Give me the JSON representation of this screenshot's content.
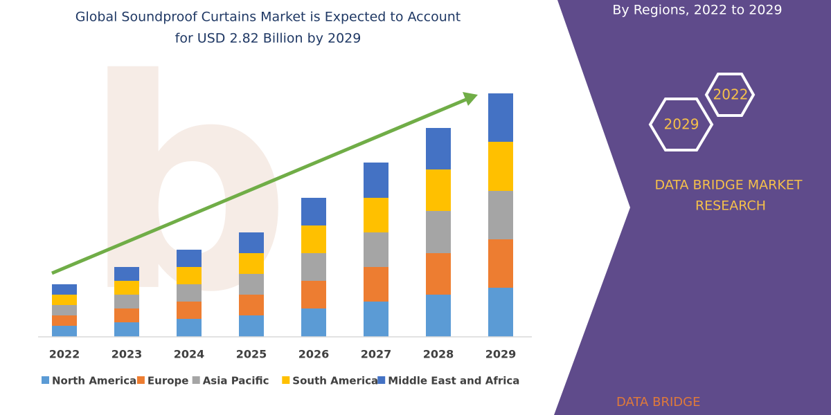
{
  "chart_data": {
    "type": "stacked-bar",
    "title": [
      "Global Soundproof Curtains Market is Expected to Account",
      "for USD 2.82 Billion by 2029"
    ],
    "categories": [
      "2022",
      "2023",
      "2024",
      "2025",
      "2026",
      "2027",
      "2028",
      "2029"
    ],
    "series": [
      {
        "name": "North America",
        "color": "#5b9bd5",
        "values": [
          16,
          21,
          26,
          31,
          41,
          51,
          61,
          71
        ]
      },
      {
        "name": "Europe",
        "color": "#ed7d31",
        "values": [
          15,
          20,
          25,
          30,
          40,
          50,
          60,
          70
        ]
      },
      {
        "name": "Asia Pacific",
        "color": "#a5a5a5",
        "values": [
          15,
          20,
          25,
          30,
          40,
          50,
          61,
          70
        ]
      },
      {
        "name": "South America",
        "color": "#ffc000",
        "values": [
          15,
          20,
          25,
          30,
          40,
          50,
          60,
          71
        ]
      },
      {
        "name": "Middle East and Africa",
        "color": "#4472c4",
        "values": [
          15,
          20,
          25,
          30,
          40,
          51,
          60,
          70
        ]
      }
    ],
    "ylim": [
      0,
      352
    ]
  },
  "side": {
    "subtitle": "By Regions, 2022 to 2029",
    "badges": [
      "2022",
      "2029"
    ],
    "brand": [
      "DATA BRIDGE MARKET",
      "RESEARCH"
    ],
    "logo": "DATA BRIDGE"
  }
}
